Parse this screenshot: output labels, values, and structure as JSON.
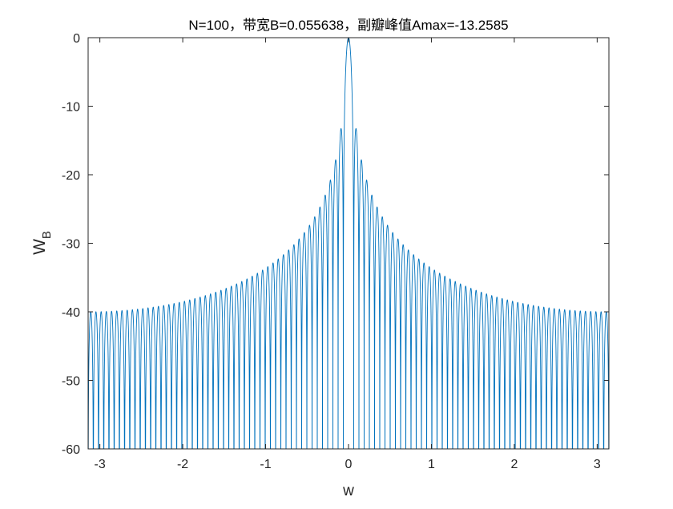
{
  "chart_data": {
    "type": "line",
    "title": "N=100，带宽B=0.055638，副瓣峰值Amax=-13.2585",
    "xlabel": "w",
    "ylabel_main": "W",
    "ylabel_sub": "B",
    "xlim": [
      -3.14159,
      3.14159
    ],
    "ylim": [
      -60,
      0
    ],
    "xticks": [
      -3,
      -2,
      -1,
      0,
      1,
      2,
      3
    ],
    "xtick_labels": [
      "-3",
      "-2",
      "-1",
      "0",
      "1",
      "2",
      "3"
    ],
    "yticks": [
      0,
      -10,
      -20,
      -30,
      -40,
      -50,
      -60
    ],
    "ytick_labels": [
      "0",
      "-10",
      "-20",
      "-30",
      "-40",
      "-50",
      "-60"
    ],
    "grid": false,
    "series": [
      {
        "color": "#0072bd",
        "function": "rectangular_window_magnitude_db",
        "window_length": 100,
        "samples": 6000
      }
    ]
  }
}
